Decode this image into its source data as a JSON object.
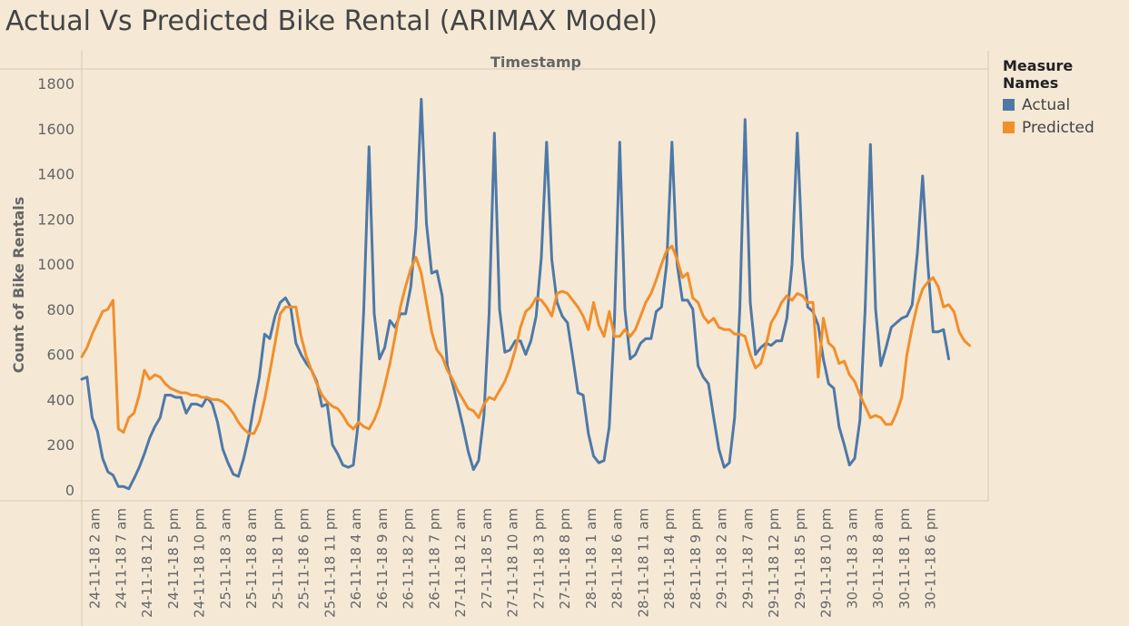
{
  "title": "Actual Vs Predicted Bike Rental (ARIMAX Model)",
  "legend": {
    "title": "Measure Names",
    "items": [
      {
        "label": "Actual",
        "color": "#4e79a7"
      },
      {
        "label": "Predicted",
        "color": "#f28e2b"
      }
    ]
  },
  "chart_data": {
    "type": "line",
    "title": "Actual Vs Predicted Bike Rental (ARIMAX Model)",
    "xlabel": "Timestamp",
    "ylabel": "Count of Bike Rentals",
    "ylim": [
      0,
      1800
    ],
    "yticks": [
      0,
      200,
      400,
      600,
      800,
      1000,
      1200,
      1400,
      1600,
      1800
    ],
    "xtick_labels": [
      "24-11-18 2 am",
      "24-11-18 7 am",
      "24-11-18 12 pm",
      "24-11-18 5 pm",
      "24-11-18 10 pm",
      "25-11-18 3 am",
      "25-11-18 8 am",
      "25-11-18 1 pm",
      "25-11-18 6 pm",
      "25-11-18 11 pm",
      "26-11-18 4 am",
      "26-11-18 9 am",
      "26-11-18 2 pm",
      "26-11-18 7 pm",
      "27-11-18 12 am",
      "27-11-18 5 am",
      "27-11-18 10 am",
      "27-11-18 3 pm",
      "27-11-18 8 pm",
      "28-11-18 1 am",
      "28-11-18 6 am",
      "28-11-18 11 am",
      "28-11-18 4 pm",
      "28-11-18 9 pm",
      "29-11-18 2 am",
      "29-11-18 7 am",
      "29-11-18 12 pm",
      "29-11-18 5 pm",
      "29-11-18 10 pm",
      "30-11-18 3 am",
      "30-11-18 8 am",
      "30-11-18 1 pm",
      "30-11-18 6 pm"
    ],
    "x_start": "24-11-18 0 am",
    "x_step_hours": 1,
    "grid": false,
    "legend_position": "right",
    "series": [
      {
        "name": "Actual",
        "color": "#4e79a7",
        "values": [
          490,
          500,
          320,
          260,
          140,
          80,
          65,
          15,
          15,
          5,
          50,
          100,
          160,
          230,
          280,
          320,
          420,
          420,
          410,
          410,
          340,
          380,
          380,
          370,
          410,
          380,
          300,
          180,
          120,
          70,
          60,
          140,
          240,
          380,
          500,
          690,
          670,
          770,
          830,
          850,
          810,
          650,
          600,
          560,
          530,
          480,
          370,
          380,
          200,
          160,
          110,
          100,
          110,
          310,
          800,
          1520,
          780,
          580,
          630,
          750,
          720,
          780,
          780,
          900,
          1160,
          1730,
          1180,
          960,
          970,
          860,
          550,
          470,
          380,
          280,
          170,
          90,
          130,
          330,
          780,
          1580,
          800,
          610,
          620,
          660,
          660,
          600,
          660,
          770,
          1030,
          1540,
          1020,
          830,
          770,
          740,
          590,
          430,
          420,
          250,
          150,
          120,
          130,
          280,
          750,
          1540,
          800,
          580,
          600,
          650,
          670,
          670,
          790,
          810,
          1000,
          1540,
          1000,
          840,
          840,
          800,
          550,
          500,
          470,
          320,
          180,
          100,
          120,
          320,
          800,
          1640,
          830,
          600,
          630,
          650,
          640,
          660,
          660,
          760,
          1000,
          1580,
          1030,
          810,
          790,
          730,
          580,
          470,
          450,
          280,
          200,
          110,
          140,
          310,
          800,
          1530,
          800,
          550,
          630,
          720,
          740,
          760,
          770,
          820,
          1050,
          1390,
          1000,
          700,
          700,
          710,
          580
        ]
      },
      {
        "name": "Predicted",
        "color": "#f28e2b",
        "values": [
          590,
          630,
          690,
          740,
          790,
          800,
          840,
          270,
          255,
          320,
          340,
          420,
          530,
          490,
          510,
          500,
          470,
          450,
          440,
          430,
          430,
          420,
          420,
          410,
          410,
          400,
          400,
          390,
          370,
          340,
          300,
          270,
          250,
          250,
          300,
          400,
          520,
          650,
          780,
          810,
          810,
          810,
          680,
          590,
          530,
          470,
          420,
          390,
          370,
          360,
          330,
          290,
          270,
          300,
          280,
          270,
          310,
          370,
          460,
          560,
          680,
          810,
          900,
          980,
          1030,
          960,
          830,
          700,
          620,
          590,
          530,
          490,
          440,
          400,
          360,
          350,
          320,
          380,
          410,
          400,
          440,
          480,
          540,
          620,
          720,
          790,
          810,
          850,
          840,
          810,
          770,
          870,
          880,
          870,
          840,
          810,
          770,
          710,
          830,
          730,
          680,
          790,
          680,
          680,
          710,
          680,
          710,
          770,
          830,
          870,
          930,
          1000,
          1060,
          1080,
          1020,
          940,
          960,
          850,
          830,
          770,
          740,
          760,
          720,
          710,
          710,
          690,
          690,
          680,
          600,
          540,
          560,
          640,
          740,
          780,
          830,
          860,
          840,
          870,
          860,
          830,
          830,
          500,
          760,
          650,
          630,
          560,
          570,
          510,
          480,
          420,
          370,
          320,
          330,
          320,
          290,
          290,
          340,
          410,
          600,
          720,
          820,
          890,
          920,
          940,
          900,
          810,
          820,
          790,
          700,
          660,
          640
        ]
      }
    ]
  }
}
